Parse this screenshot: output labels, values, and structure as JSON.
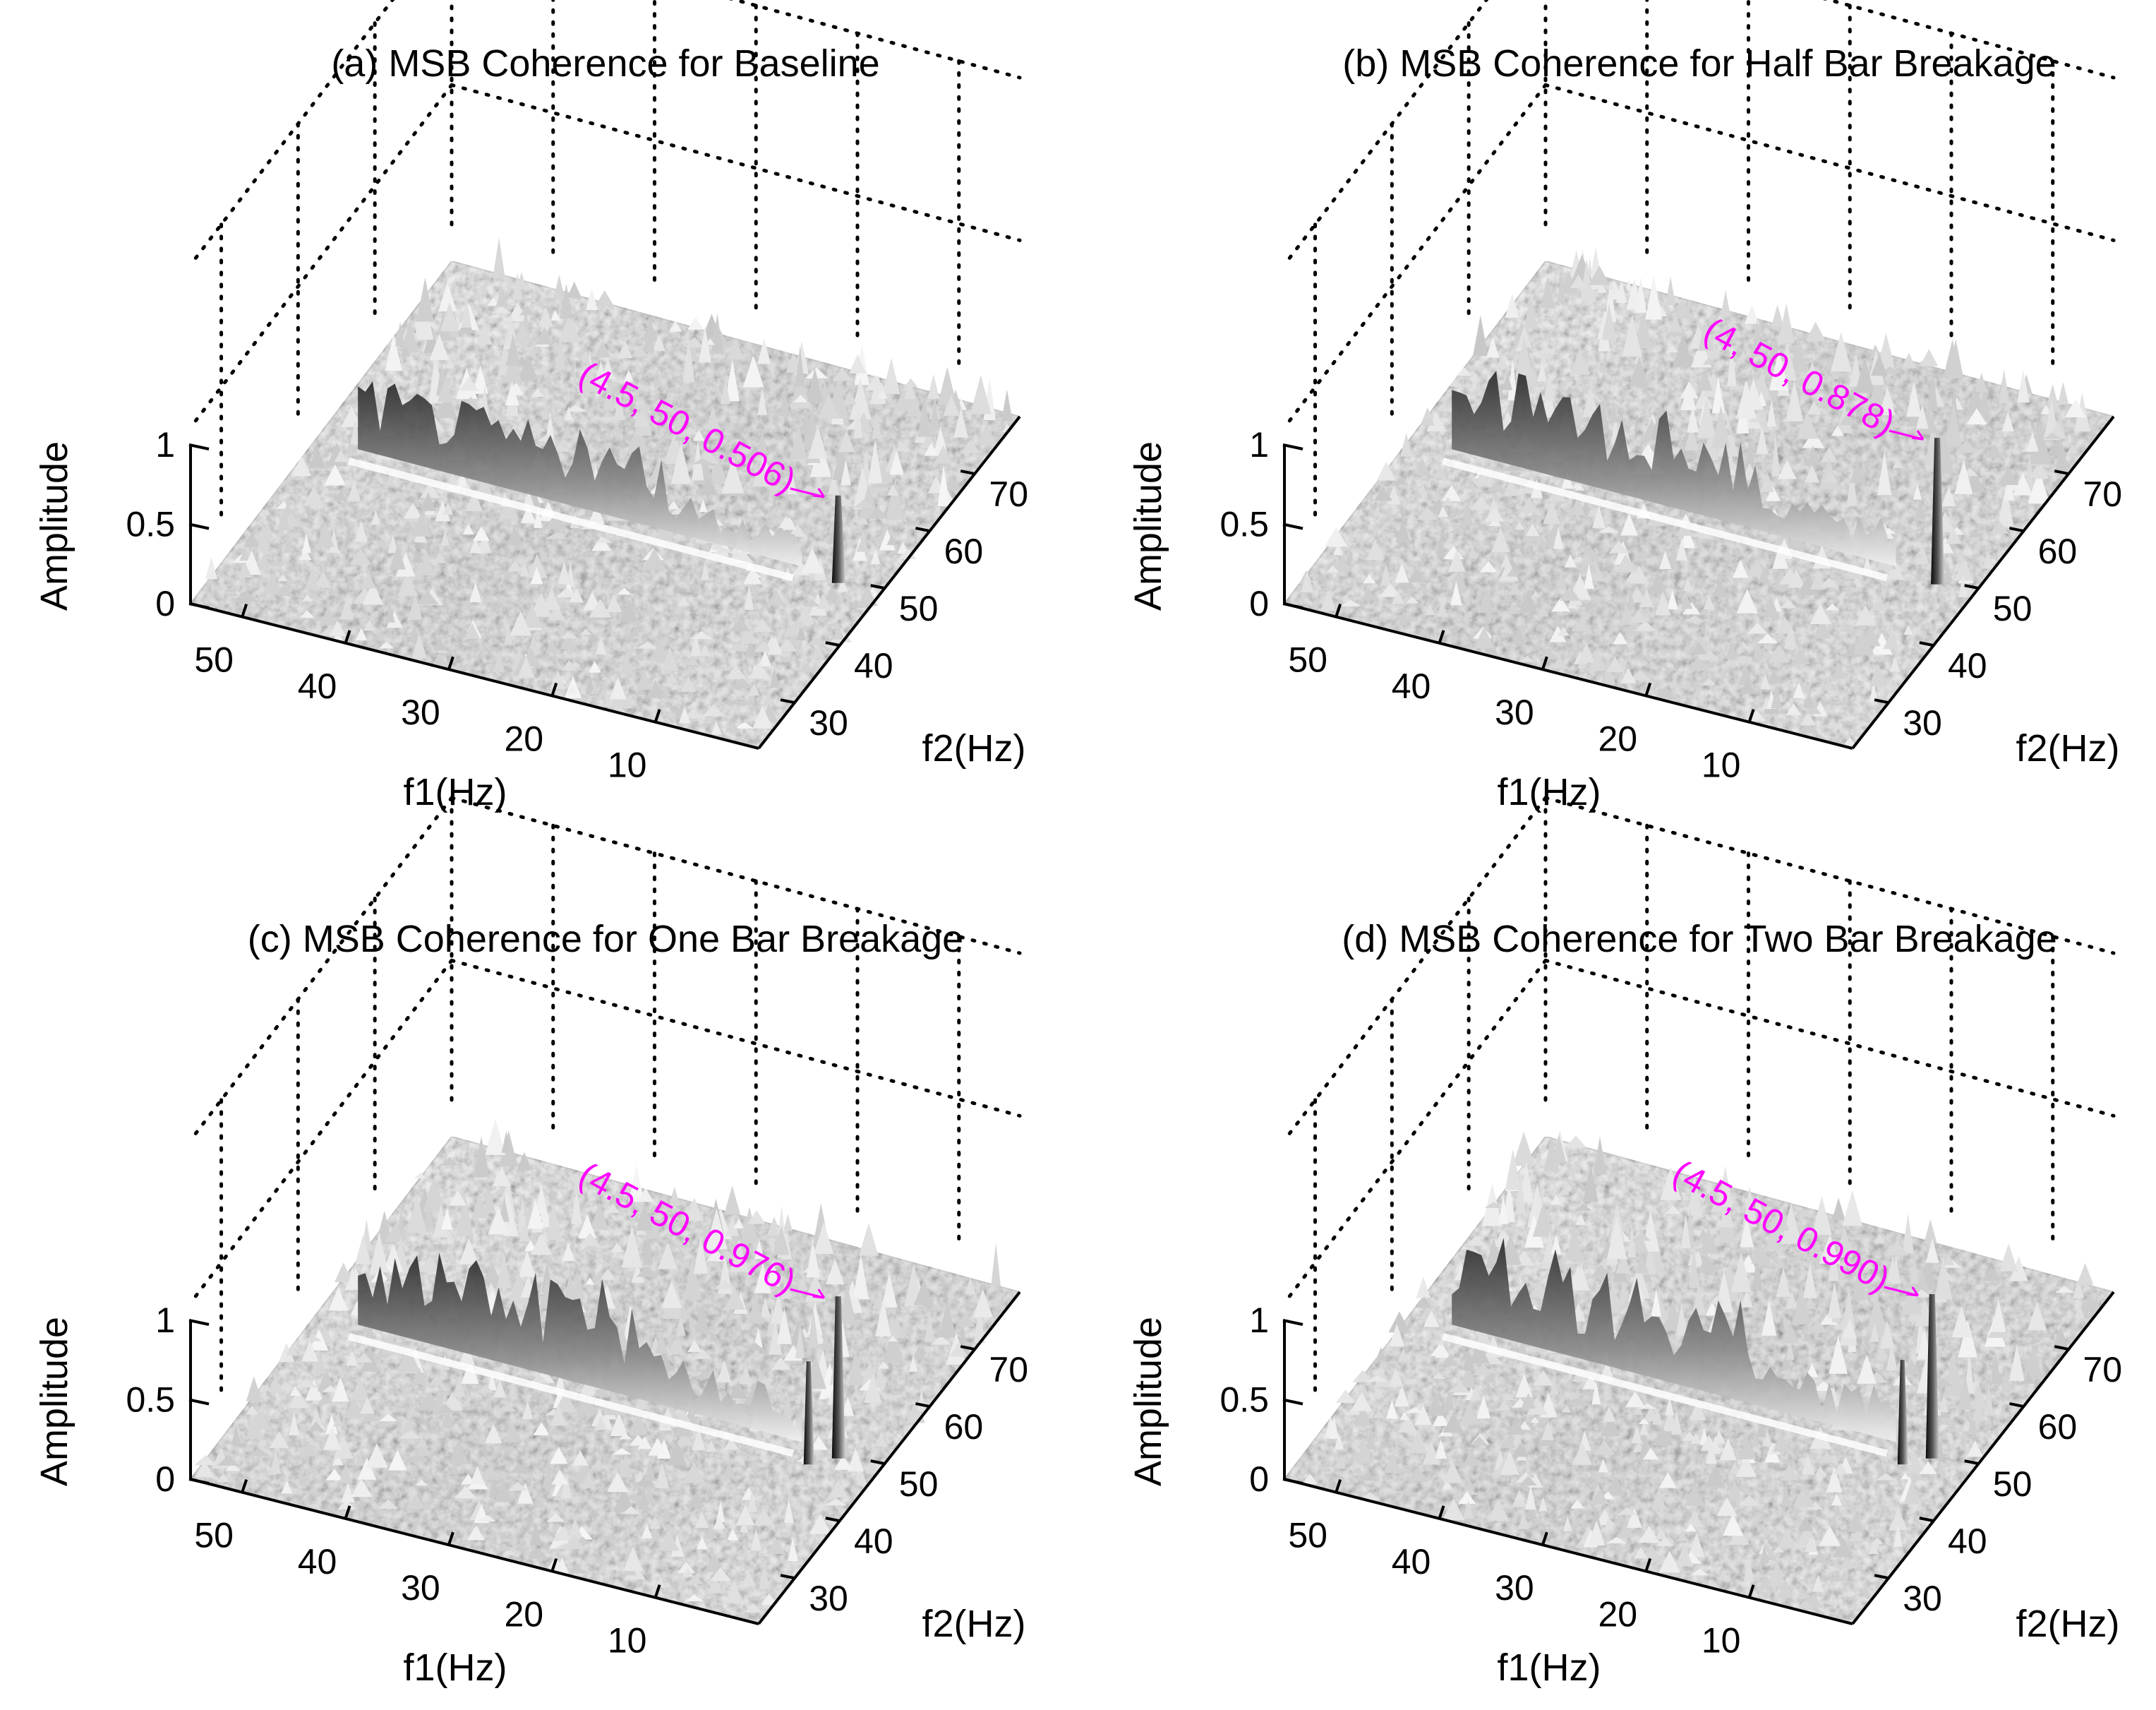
{
  "chart_data": [
    {
      "type": "surface",
      "title": "(a) MSB Coherence for Baseline",
      "xlabel": "f1(Hz)",
      "ylabel": "f2(Hz)",
      "zlabel": "Amplitude",
      "f1_ticks": [
        "50",
        "40",
        "30",
        "20",
        "10"
      ],
      "f2_ticks": [
        "30",
        "40",
        "50",
        "60",
        "70"
      ],
      "amp_ticks": [
        "0",
        "0.5",
        "1"
      ],
      "f1_range": [
        0,
        55
      ],
      "f2_range": [
        22,
        80
      ],
      "amp_range": [
        0,
        1
      ],
      "ridge_f2": 50,
      "peak": {
        "f1": 4.5,
        "f2": 50,
        "amplitude": 0.506,
        "label": "(4.5, 50, 0.506)"
      }
    },
    {
      "type": "surface",
      "title": "(b) MSB Coherence for Half Bar Breakage",
      "xlabel": "f1(Hz)",
      "ylabel": "f2(Hz)",
      "zlabel": "Amplitude",
      "f1_ticks": [
        "50",
        "40",
        "30",
        "20",
        "10"
      ],
      "f2_ticks": [
        "30",
        "40",
        "50",
        "60",
        "70"
      ],
      "amp_ticks": [
        "0",
        "0.5",
        "1"
      ],
      "f1_range": [
        0,
        55
      ],
      "f2_range": [
        22,
        80
      ],
      "amp_range": [
        0,
        1
      ],
      "ridge_f2": 50,
      "peak": {
        "f1": 4,
        "f2": 50,
        "amplitude": 0.878,
        "label": "(4, 50, 0.878)"
      }
    },
    {
      "type": "surface",
      "title": "(c) MSB Coherence for One Bar Breakage",
      "xlabel": "f1(Hz)",
      "ylabel": "f2(Hz)",
      "zlabel": "Amplitude",
      "f1_ticks": [
        "50",
        "40",
        "30",
        "20",
        "10"
      ],
      "f2_ticks": [
        "30",
        "40",
        "50",
        "60",
        "70"
      ],
      "amp_ticks": [
        "0",
        "0.5",
        "1"
      ],
      "f1_range": [
        0,
        55
      ],
      "f2_range": [
        22,
        80
      ],
      "amp_range": [
        0,
        1
      ],
      "ridge_f2": 50,
      "peak": {
        "f1": 4.5,
        "f2": 50,
        "amplitude": 0.976,
        "label": "(4.5, 50, 0.976)"
      }
    },
    {
      "type": "surface",
      "title": "(d) MSB Coherence for Two Bar Breakage",
      "xlabel": "f1(Hz)",
      "ylabel": "f2(Hz)",
      "zlabel": "Amplitude",
      "f1_ticks": [
        "50",
        "40",
        "30",
        "20",
        "10"
      ],
      "f2_ticks": [
        "30",
        "40",
        "50",
        "60",
        "70"
      ],
      "amp_ticks": [
        "0",
        "0.5",
        "1"
      ],
      "f1_range": [
        0,
        55
      ],
      "f2_range": [
        22,
        80
      ],
      "amp_range": [
        0,
        1
      ],
      "ridge_f2": 50,
      "peak": {
        "f1": 4.5,
        "f2": 50,
        "amplitude": 0.99,
        "label": "(4.5, 50, 0.990)"
      }
    }
  ]
}
